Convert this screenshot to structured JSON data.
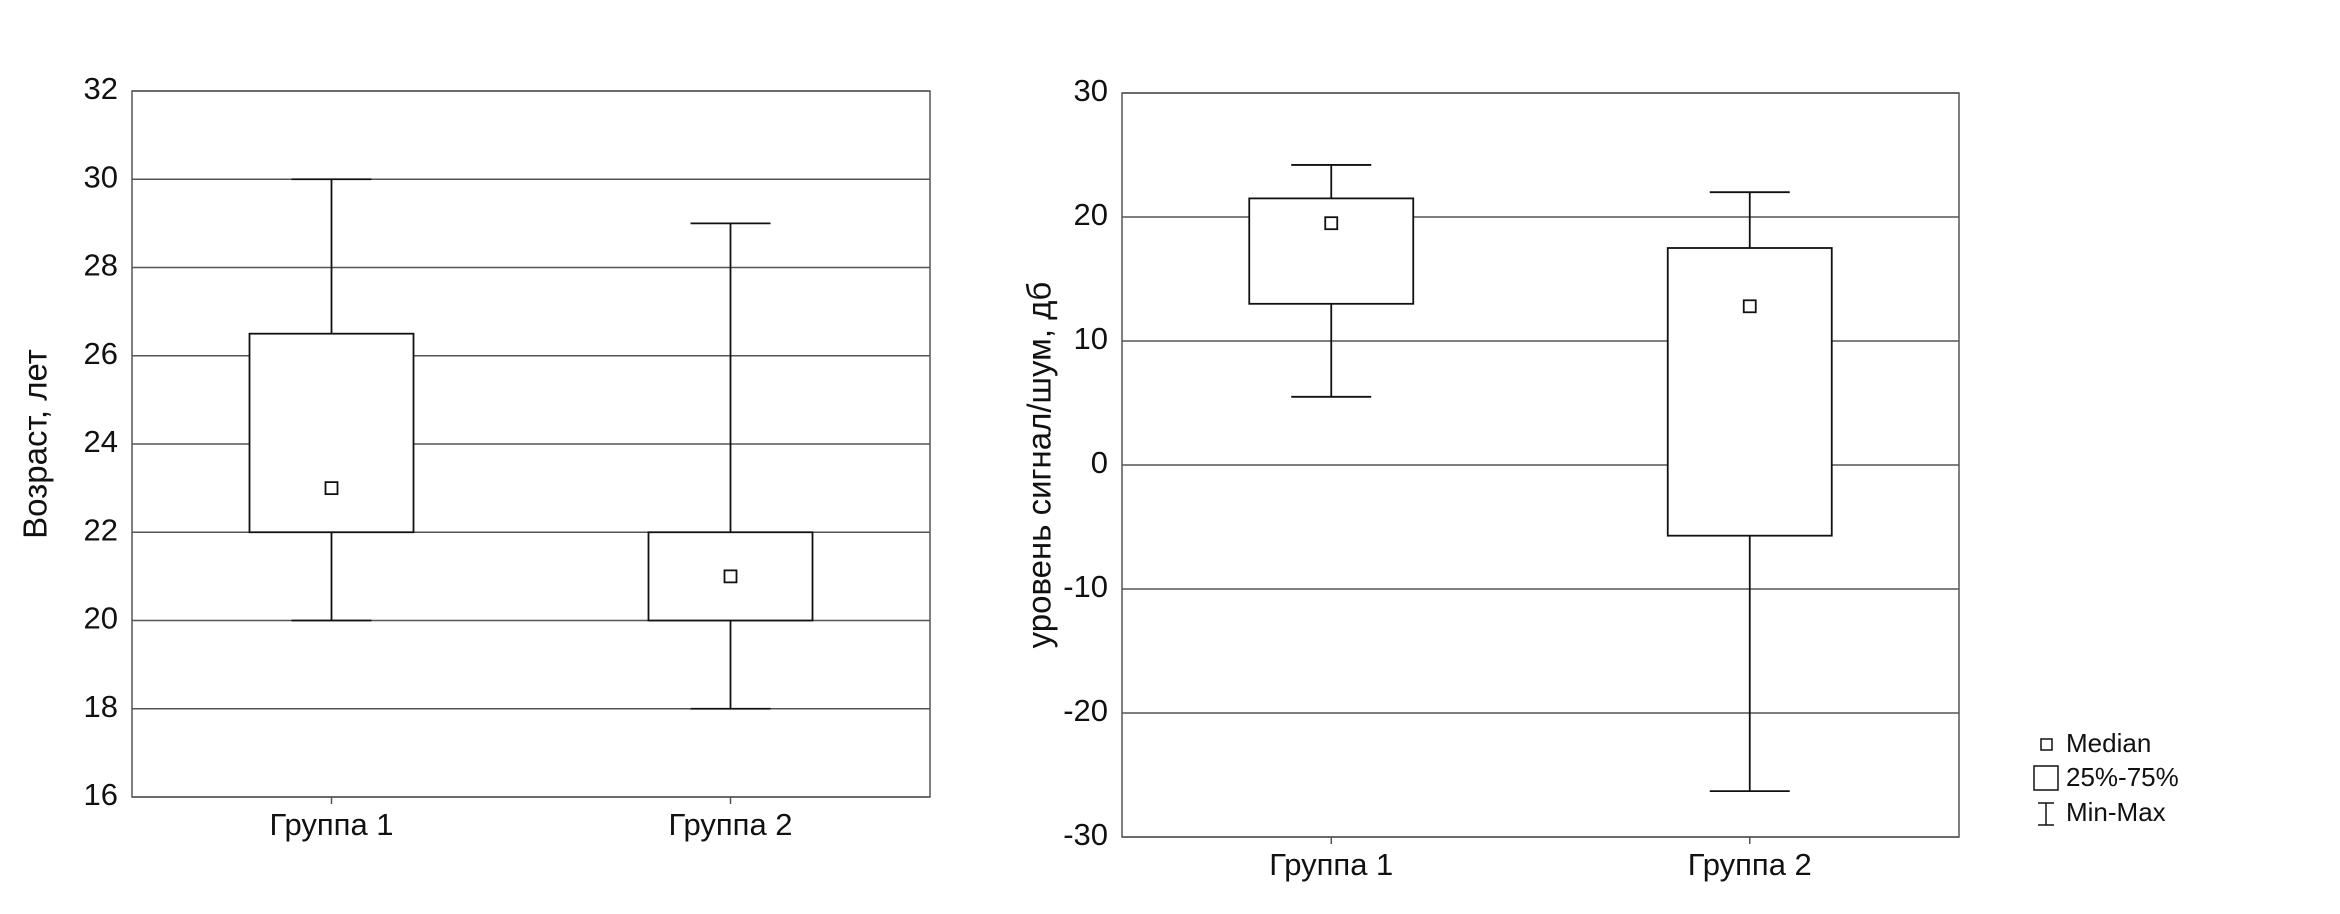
{
  "chart_data": [
    {
      "type": "box",
      "ylabel": "Возраст, лет",
      "categories": [
        "Группа 1",
        "Группа 2"
      ],
      "min": [
        20,
        18
      ],
      "q1": [
        22,
        20
      ],
      "median": [
        23,
        21
      ],
      "q3": [
        26.5,
        22
      ],
      "max": [
        30,
        29
      ],
      "ylim": [
        16,
        32
      ],
      "yticks": [
        16,
        18,
        20,
        22,
        24,
        26,
        28,
        30,
        32
      ],
      "grid": true
    },
    {
      "type": "box",
      "ylabel": "уровень сигнал/шум, дб",
      "categories": [
        "Группа 1",
        "Группа 2"
      ],
      "min": [
        5.5,
        -26.3
      ],
      "q1": [
        13,
        -5.7
      ],
      "median": [
        19.5,
        12.8
      ],
      "q3": [
        21.5,
        17.5
      ],
      "max": [
        24.2,
        22
      ],
      "ylim": [
        -30,
        30
      ],
      "yticks": [
        -30,
        -20,
        -10,
        0,
        10,
        20,
        30
      ],
      "grid": true,
      "legend": [
        "Median",
        "25%-75%",
        "Min-Max"
      ]
    }
  ]
}
